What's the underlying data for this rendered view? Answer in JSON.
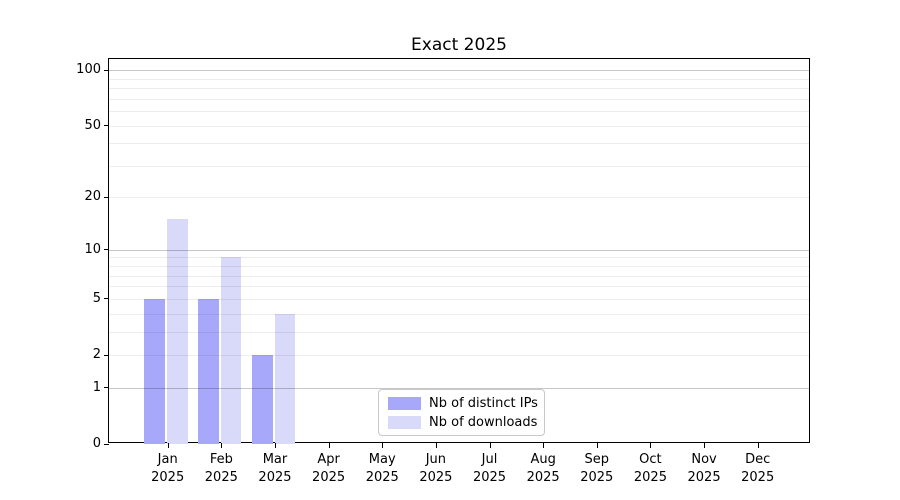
{
  "chart_data": {
    "type": "bar",
    "title": "Exact 2025",
    "categories": [
      "Jan",
      "Feb",
      "Mar",
      "Apr",
      "May",
      "Jun",
      "Jul",
      "Aug",
      "Sep",
      "Oct",
      "Nov",
      "Dec"
    ],
    "category_year": "2025",
    "series": [
      {
        "name": "Nb of distinct IPs",
        "color": "#a8a8fa",
        "values": [
          5,
          5,
          2,
          0,
          0,
          0,
          0,
          0,
          0,
          0,
          0,
          0
        ]
      },
      {
        "name": "Nb of downloads",
        "color": "#d9d9f9",
        "values": [
          15,
          9,
          4,
          0,
          0,
          0,
          0,
          0,
          0,
          0,
          0,
          0
        ]
      }
    ],
    "xlabel": "",
    "ylabel": "",
    "yscale": "log1p",
    "ylim": [
      0,
      115
    ],
    "ytick_values": [
      0,
      1,
      2,
      5,
      10,
      20,
      50,
      100
    ],
    "grid": "on",
    "grid_major_values": [
      1,
      10,
      100
    ],
    "grid_minor_values": [
      2,
      3,
      4,
      5,
      6,
      7,
      8,
      9,
      20,
      30,
      40,
      50,
      60,
      70,
      80,
      90
    ],
    "legend_position": "lower center",
    "colors": {
      "background": "#ffffff",
      "axis": "#000000",
      "text": "#000000",
      "grid_major": "#c8c8c8",
      "grid_minor": "#ececec",
      "legend_border": "#c9c9c9"
    }
  }
}
